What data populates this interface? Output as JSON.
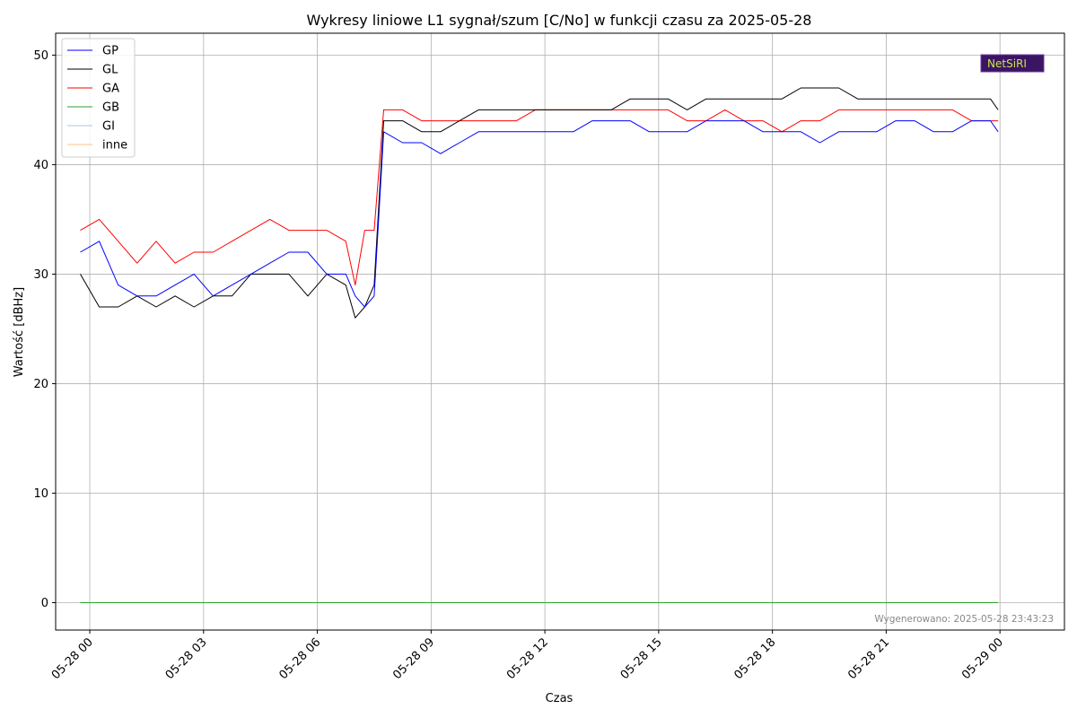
{
  "chart_data": {
    "type": "line",
    "title": "Wykresy liniowe L1 sygnał/szum [C/No] w funkcji czasu za 2025-05-28",
    "xlabel": "Czas",
    "ylabel": "Wartość [dBHz]",
    "ylim": [
      -2.5,
      52
    ],
    "yticks": [
      0,
      10,
      20,
      30,
      40,
      50
    ],
    "xlim_hours": [
      -0.9,
      25.7
    ],
    "xticks": [
      {
        "hour": 0,
        "label": "05-28 00"
      },
      {
        "hour": 3,
        "label": "05-28 03"
      },
      {
        "hour": 6,
        "label": "05-28 06"
      },
      {
        "hour": 9,
        "label": "05-28 09"
      },
      {
        "hour": 12,
        "label": "05-28 12"
      },
      {
        "hour": 15,
        "label": "05-28 15"
      },
      {
        "hour": 18,
        "label": "05-28 18"
      },
      {
        "hour": 21,
        "label": "05-28 21"
      },
      {
        "hour": 24,
        "label": "05-29 00"
      }
    ],
    "grid": true,
    "legend_position": "top-left",
    "watermark": "Wygenerowano: 2025-05-28 23:43:23",
    "logo_text": "NetSiRI",
    "x_hours": [
      -0.25,
      0.25,
      0.75,
      1.25,
      1.75,
      2.25,
      2.75,
      3.25,
      3.75,
      4.25,
      4.75,
      5.25,
      5.75,
      6.25,
      6.75,
      7.0,
      7.25,
      7.5,
      7.75,
      8.25,
      8.75,
      9.25,
      9.75,
      10.25,
      10.75,
      11.25,
      11.75,
      12.25,
      12.75,
      13.25,
      13.75,
      14.25,
      14.75,
      15.25,
      15.75,
      16.25,
      16.75,
      17.25,
      17.75,
      18.25,
      18.75,
      19.25,
      19.75,
      20.25,
      20.75,
      21.25,
      21.75,
      22.25,
      22.75,
      23.25,
      23.75,
      23.95
    ],
    "series": [
      {
        "name": "GP",
        "color": "#0000ff",
        "values": [
          32,
          33,
          29,
          28,
          28,
          29,
          30,
          28,
          29,
          30,
          31,
          32,
          32,
          30,
          30,
          28,
          27,
          28,
          43,
          42,
          42,
          41,
          42,
          43,
          43,
          43,
          43,
          43,
          43,
          44,
          44,
          44,
          43,
          43,
          43,
          44,
          44,
          44,
          43,
          43,
          43,
          42,
          43,
          43,
          43,
          44,
          44,
          43,
          43,
          44,
          44,
          43
        ]
      },
      {
        "name": "GL",
        "color": "#000000",
        "values": [
          30,
          27,
          27,
          28,
          27,
          28,
          27,
          28,
          28,
          30,
          30,
          30,
          28,
          30,
          29,
          26,
          27,
          29,
          44,
          44,
          43,
          43,
          44,
          45,
          45,
          45,
          45,
          45,
          45,
          45,
          45,
          46,
          46,
          46,
          45,
          46,
          46,
          46,
          46,
          46,
          47,
          47,
          47,
          46,
          46,
          46,
          46,
          46,
          46,
          46,
          46,
          45
        ]
      },
      {
        "name": "GA",
        "color": "#ff0000",
        "values": [
          34,
          35,
          33,
          31,
          33,
          31,
          32,
          32,
          33,
          34,
          35,
          34,
          34,
          34,
          33,
          29,
          34,
          34,
          45,
          45,
          44,
          44,
          44,
          44,
          44,
          44,
          45,
          45,
          45,
          45,
          45,
          45,
          45,
          45,
          44,
          44,
          45,
          44,
          44,
          43,
          44,
          44,
          45,
          45,
          45,
          45,
          45,
          45,
          45,
          44,
          44,
          44
        ]
      },
      {
        "name": "GB",
        "color": "#2ca02c",
        "values": [
          0,
          0,
          0,
          0,
          0,
          0,
          0,
          0,
          0,
          0,
          0,
          0,
          0,
          0,
          0,
          0,
          0,
          0,
          0,
          0,
          0,
          0,
          0,
          0,
          0,
          0,
          0,
          0,
          0,
          0,
          0,
          0,
          0,
          0,
          0,
          0,
          0,
          0,
          0,
          0,
          0,
          0,
          0,
          0,
          0,
          0,
          0,
          0,
          0,
          0,
          0,
          0
        ]
      },
      {
        "name": "GI",
        "color": "#b0c4de",
        "values": [
          0,
          0,
          0,
          0,
          0,
          0,
          0,
          0,
          0,
          0,
          0,
          0,
          0,
          0,
          0,
          0,
          0,
          0,
          0,
          0,
          0,
          0,
          0,
          0,
          0,
          0,
          0,
          0,
          0,
          0,
          0,
          0,
          0,
          0,
          0,
          0,
          0,
          0,
          0,
          0,
          0,
          0,
          0,
          0,
          0,
          0,
          0,
          0,
          0,
          0,
          0,
          0
        ]
      },
      {
        "name": "inne",
        "color": "#ffbf80",
        "values": [
          0,
          0,
          0,
          0,
          0,
          0,
          0,
          0,
          0,
          0,
          0,
          0,
          0,
          0,
          0,
          0,
          0,
          0,
          0,
          0,
          0,
          0,
          0,
          0,
          0,
          0,
          0,
          0,
          0,
          0,
          0,
          0,
          0,
          0,
          0,
          0,
          0,
          0,
          0,
          0,
          0,
          0,
          0,
          0,
          0,
          0,
          0,
          0,
          0,
          0,
          0,
          0
        ]
      }
    ]
  }
}
